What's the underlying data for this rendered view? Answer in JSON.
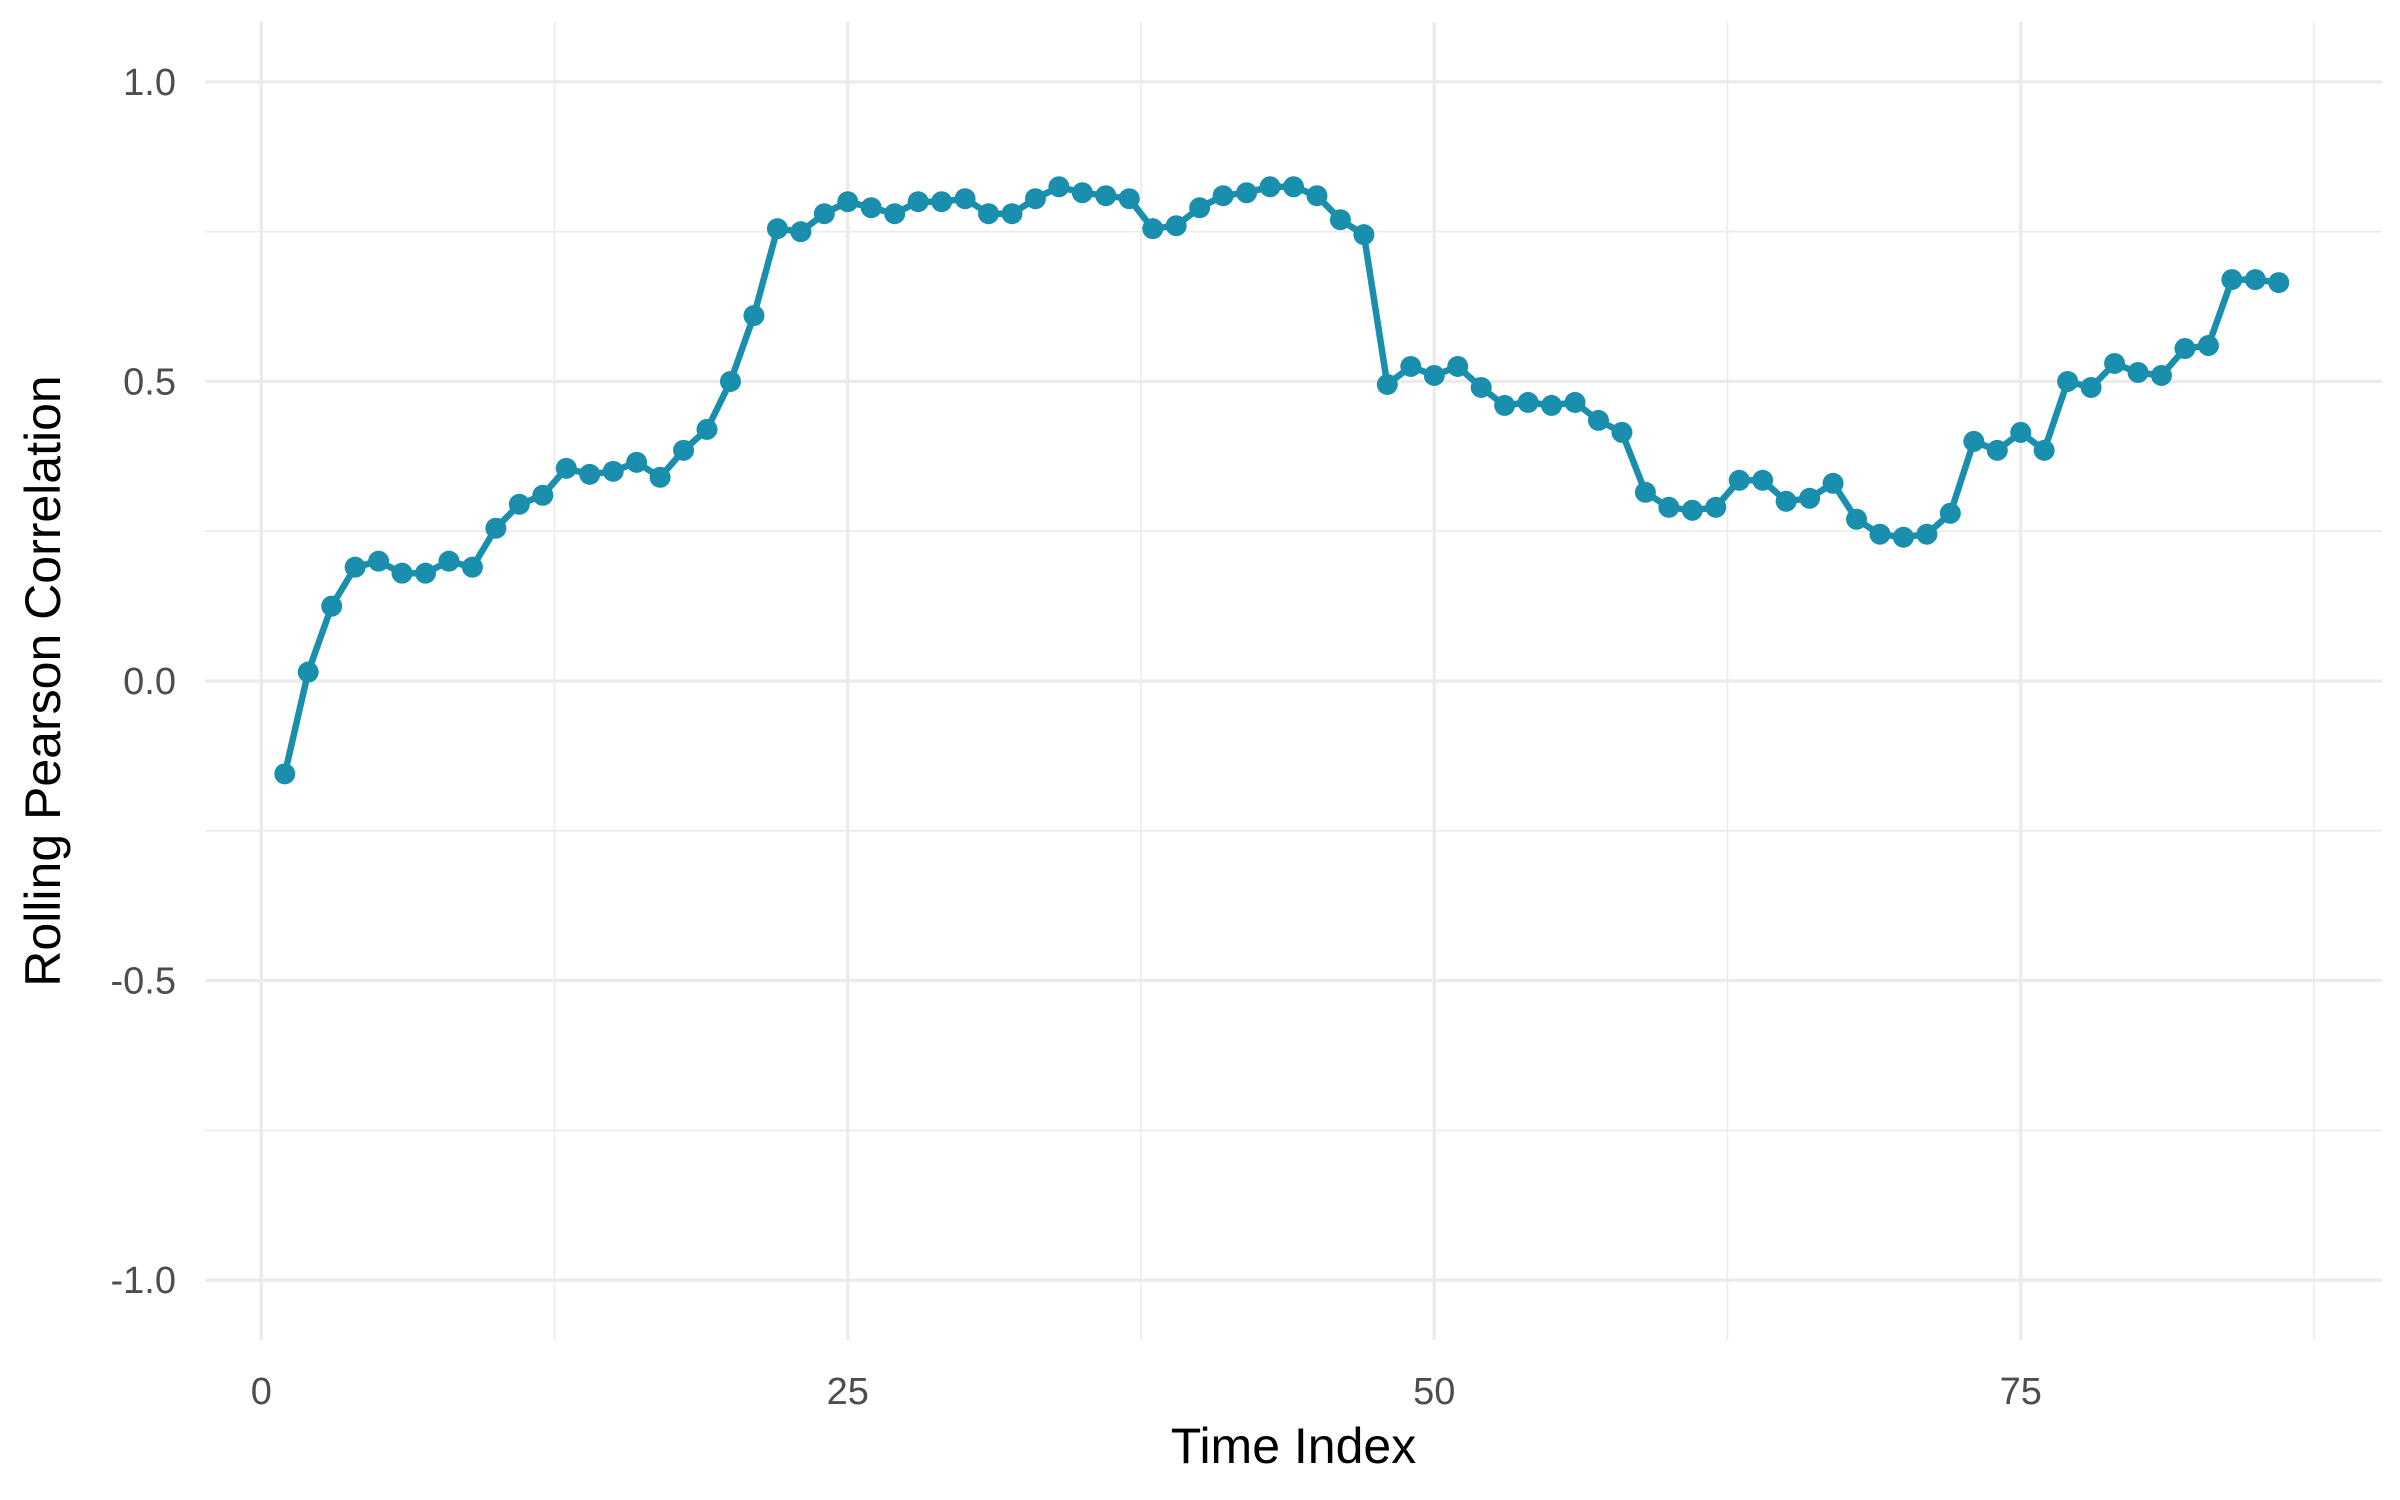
{
  "chart_data": {
    "type": "line",
    "xlabel": "Time Index",
    "ylabel": "Rolling Pearson Correlation",
    "xlim": [
      -2.4,
      90.4
    ],
    "ylim": [
      -1.1,
      1.1
    ],
    "x_ticks": [
      0,
      25,
      50,
      75
    ],
    "x_tick_labels": [
      "0",
      "25",
      "50",
      "75"
    ],
    "x_minor_ticks": [
      12.5,
      37.5,
      62.5,
      87.5
    ],
    "y_ticks": [
      -1.0,
      -0.5,
      0.0,
      0.5,
      1.0
    ],
    "y_tick_labels": [
      "-1.0",
      "-0.5",
      "0.0",
      "0.5",
      "1.0"
    ],
    "y_minor_ticks": [
      -0.75,
      -0.25,
      0.25,
      0.75
    ],
    "grid": true,
    "legend": "none",
    "line_color": "#1a8fad",
    "series": [
      {
        "x": [
          1,
          2,
          3,
          4,
          5,
          6,
          7,
          8,
          9,
          10,
          11,
          12,
          13,
          14,
          15,
          16,
          17,
          18,
          19,
          20,
          21,
          22,
          23,
          24,
          25,
          26,
          27,
          28,
          29,
          30,
          31,
          32,
          33,
          34,
          35,
          36,
          37,
          38,
          39,
          40,
          41,
          42,
          43,
          44,
          45,
          46,
          47,
          48,
          49,
          50,
          51,
          52,
          53,
          54,
          55,
          56,
          57,
          58,
          59,
          60,
          61,
          62,
          63,
          64,
          65,
          66,
          67,
          68,
          69,
          70,
          71,
          72,
          73,
          74,
          75,
          76,
          77,
          78,
          79,
          80,
          81,
          82,
          83,
          84,
          85,
          86
        ],
        "values": [
          -0.155,
          0.015,
          0.125,
          0.19,
          0.2,
          0.18,
          0.18,
          0.2,
          0.19,
          0.255,
          0.295,
          0.31,
          0.355,
          0.345,
          0.35,
          0.365,
          0.34,
          0.385,
          0.42,
          0.5,
          0.61,
          0.755,
          0.75,
          0.78,
          0.8,
          0.79,
          0.78,
          0.8,
          0.8,
          0.805,
          0.78,
          0.78,
          0.805,
          0.825,
          0.815,
          0.81,
          0.805,
          0.755,
          0.76,
          0.79,
          0.81,
          0.815,
          0.825,
          0.825,
          0.81,
          0.77,
          0.745,
          0.495,
          0.525,
          0.51,
          0.525,
          0.49,
          0.46,
          0.465,
          0.46,
          0.465,
          0.435,
          0.415,
          0.315,
          0.29,
          0.285,
          0.29,
          0.335,
          0.335,
          0.3,
          0.305,
          0.33,
          0.27,
          0.245,
          0.24,
          0.245,
          0.28,
          0.4,
          0.385,
          0.415,
          0.385,
          0.5,
          0.49,
          0.53,
          0.515,
          0.51,
          0.555,
          0.56,
          0.67,
          0.67,
          0.665
        ]
      }
    ]
  }
}
